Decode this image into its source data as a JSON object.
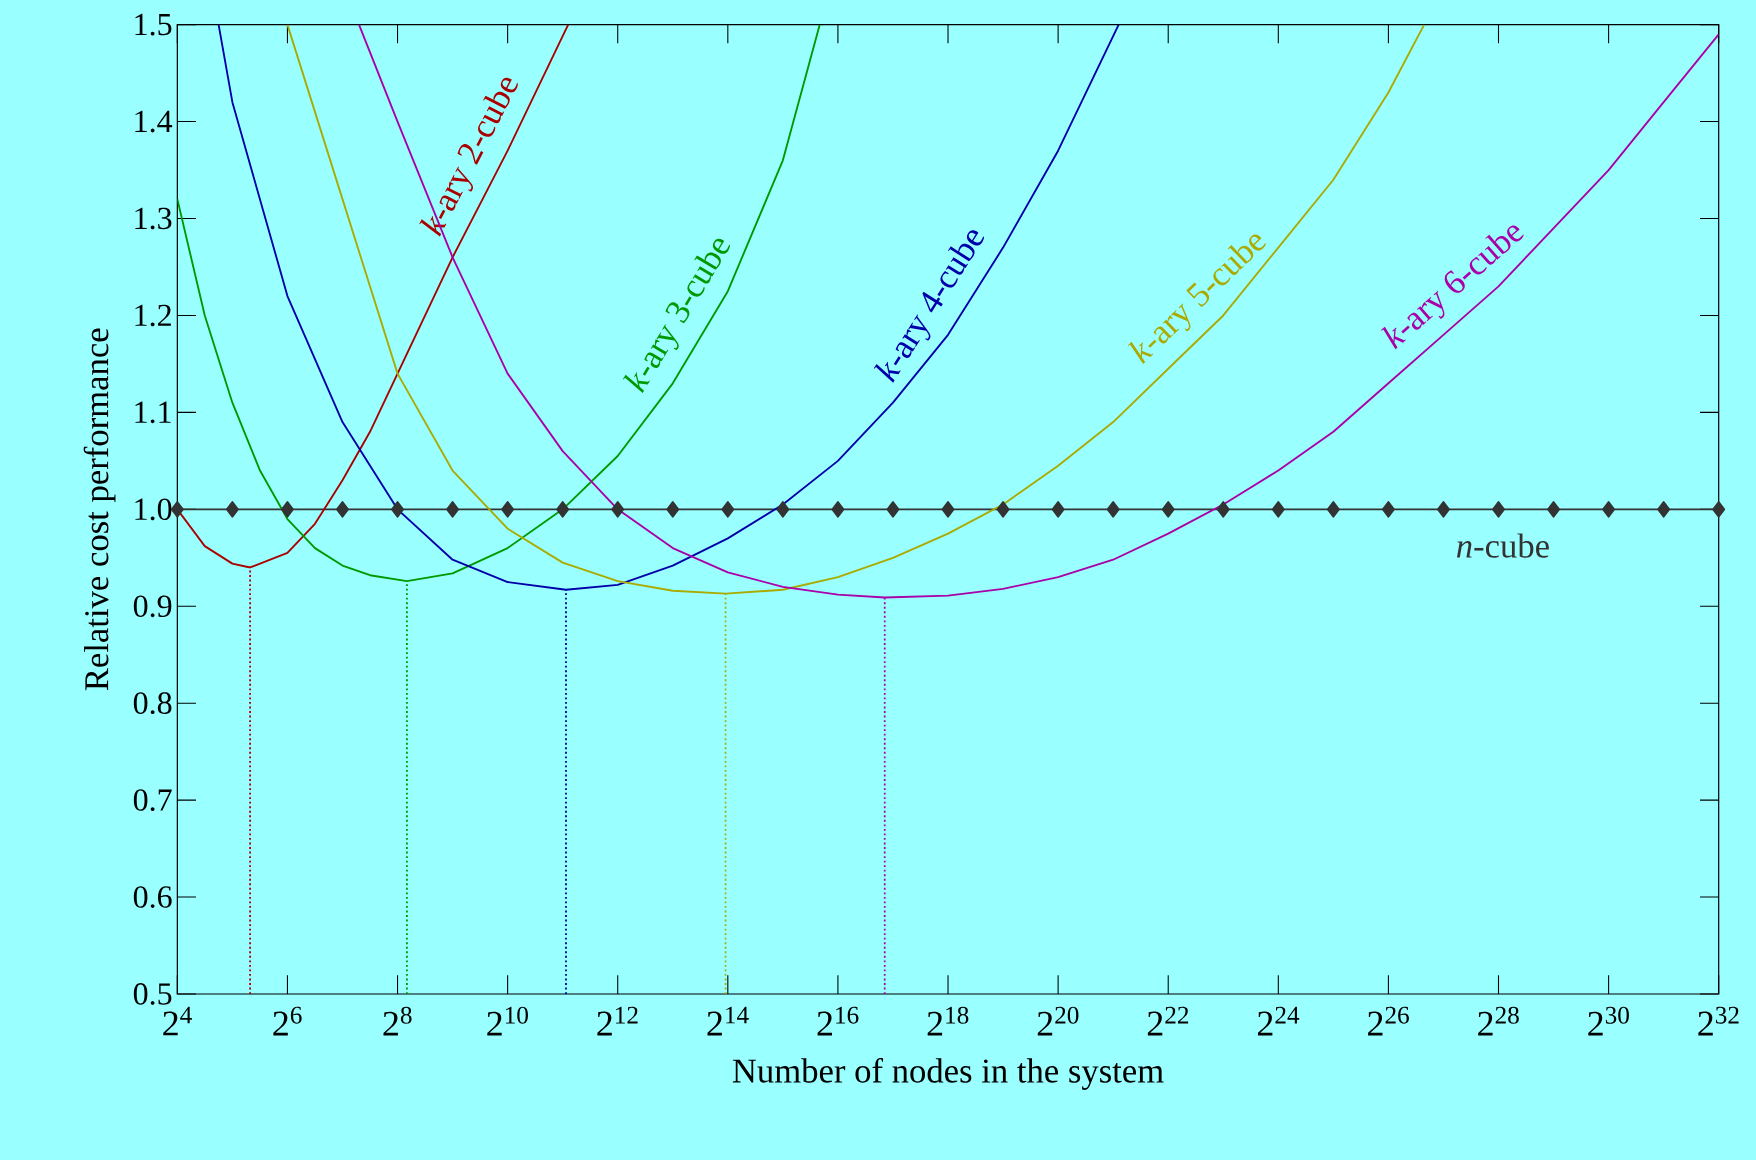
{
  "chart_data": {
    "type": "line",
    "xlabel": "Number of nodes in the system",
    "ylabel": "Relative cost performance",
    "log": "x",
    "xlim": [
      16,
      4294967296
    ],
    "ylim": [
      0.5,
      1.5
    ],
    "xticks": [
      {
        "value": 16,
        "label": "2$^{4}$"
      },
      {
        "value": 64,
        "label": "2$^{6}$"
      },
      {
        "value": 256,
        "label": "2$^{8}$"
      },
      {
        "value": 1024,
        "label": "2$^{10}$"
      },
      {
        "value": 4096,
        "label": "2$^{12}$"
      },
      {
        "value": 16384,
        "label": "2$^{14}$"
      },
      {
        "value": 65536,
        "label": "2$^{16}$"
      },
      {
        "value": 262144,
        "label": "2$^{18}$"
      },
      {
        "value": 1048576,
        "label": "2$^{20}$"
      },
      {
        "value": 4194304,
        "label": "2$^{22}$"
      },
      {
        "value": 16777216,
        "label": "2$^{24}$"
      },
      {
        "value": 67108864,
        "label": "2$^{26}$"
      },
      {
        "value": 268435456,
        "label": "2$^{28}$"
      },
      {
        "value": 1073741824,
        "label": "2$^{30}$"
      },
      {
        "value": 4294967296,
        "label": "2$^{32}$"
      }
    ],
    "yticks": [
      {
        "value": 0.5,
        "label": "0.5"
      },
      {
        "value": 0.6,
        "label": "0.6"
      },
      {
        "value": 0.7,
        "label": "0.7"
      },
      {
        "value": 0.8,
        "label": "0.8"
      },
      {
        "value": 0.9,
        "label": "0.9"
      },
      {
        "value": 1.0,
        "label": "1.0"
      },
      {
        "value": 1.1,
        "label": "1.1"
      },
      {
        "value": 1.2,
        "label": "1.2"
      },
      {
        "value": 1.3,
        "label": "1.3"
      },
      {
        "value": 1.4,
        "label": "1.4"
      },
      {
        "value": 1.5,
        "label": "1.5"
      }
    ],
    "series": [
      {
        "name": "*n*-cube",
        "color": "#333333",
        "marker": "diamond",
        "line_style": "solid",
        "x": [
          16,
          32,
          64,
          128,
          256,
          512,
          1024,
          2048,
          4096,
          8192,
          16384,
          32768,
          65536,
          131072,
          262144,
          524288,
          1048576,
          2097152,
          4194304,
          8388608,
          16777216,
          33554432,
          67108864,
          134217728,
          268435456,
          536870912,
          1073741824,
          2147483648,
          4294967296
        ],
        "values": [
          1.0,
          1.0,
          1.0,
          1.0,
          1.0,
          1.0,
          1.0,
          1.0,
          1.0,
          1.0,
          1.0,
          1.0,
          1.0,
          1.0,
          1.0,
          1.0,
          1.0,
          1.0,
          1.0,
          1.0,
          1.0,
          1.0,
          1.0,
          1.0,
          1.0,
          1.0,
          1.0,
          1.0,
          1.0
        ]
      },
      {
        "name": "*k*-ary 2-cube",
        "color": "#aa0000",
        "line_style": "solid",
        "x": [
          16,
          22.6,
          32,
          40,
          64,
          90.5,
          128,
          181,
          256,
          512,
          1024,
          2195
        ],
        "values": [
          1.0,
          0.962,
          0.944,
          0.94,
          0.955,
          0.985,
          1.03,
          1.08,
          1.14,
          1.26,
          1.37,
          1.5
        ]
      },
      {
        "name": "*k*-ary 3-cube",
        "color": "#009900",
        "line_style": "solid",
        "x": [
          16,
          22.6,
          32,
          45.3,
          64,
          90.5,
          128,
          181,
          288,
          512,
          1024,
          2048,
          4096,
          8192,
          16384,
          32768,
          52100
        ],
        "values": [
          1.32,
          1.2,
          1.11,
          1.04,
          0.99,
          0.96,
          0.942,
          0.932,
          0.926,
          0.934,
          0.96,
          1.0,
          1.055,
          1.13,
          1.225,
          1.36,
          1.5
        ]
      },
      {
        "name": "*k*-ary 4-cube",
        "color": "#0000aa",
        "line_style": "solid",
        "x": [
          26.9,
          32,
          64,
          128,
          256,
          512,
          1024,
          2135,
          4096,
          8192,
          16384,
          32768,
          65536,
          131072,
          262144,
          524288,
          1048576,
          2248000
        ],
        "values": [
          1.5,
          1.42,
          1.22,
          1.09,
          1.0,
          0.948,
          0.925,
          0.917,
          0.922,
          0.942,
          0.97,
          1.005,
          1.05,
          1.11,
          1.18,
          1.27,
          1.37,
          1.5
        ]
      },
      {
        "name": "*k*-ary 5-cube",
        "color": "#aaaa00",
        "line_style": "solid",
        "x": [
          64,
          128,
          256,
          512,
          1024,
          2048,
          4096,
          8192,
          15940,
          32768,
          65536,
          131072,
          262144,
          524288,
          1048576,
          2097152,
          4194304,
          8388608,
          16777216,
          33554432,
          67108864,
          105300000
        ],
        "values": [
          1.5,
          1.32,
          1.14,
          1.04,
          0.98,
          0.945,
          0.926,
          0.916,
          0.913,
          0.917,
          0.93,
          0.95,
          0.975,
          1.005,
          1.045,
          1.09,
          1.145,
          1.2,
          1.27,
          1.34,
          1.43,
          1.5
        ]
      },
      {
        "name": "*k*-ary 6-cube",
        "color": "#aa00aa",
        "line_style": "solid",
        "x": [
          157.6,
          256,
          512,
          1024,
          2048,
          4096,
          8192,
          16384,
          32768,
          65536,
          118100,
          262144,
          524288,
          1048576,
          2097152,
          4194304,
          8388608,
          16777216,
          33554432,
          67108864,
          134217728,
          268435456,
          536870912,
          1073741824,
          2147483648,
          4294967296
        ],
        "values": [
          1.5,
          1.4,
          1.26,
          1.14,
          1.06,
          1.0,
          0.96,
          0.935,
          0.92,
          0.912,
          0.909,
          0.911,
          0.918,
          0.93,
          0.948,
          0.975,
          1.005,
          1.04,
          1.08,
          1.13,
          1.18,
          1.23,
          1.29,
          1.35,
          1.42,
          1.49
        ]
      },
      {
        "color": "#aa0000",
        "line_style": "dotted",
        "x": [
          40,
          40
        ],
        "values": [
          0.5,
          0.94
        ]
      },
      {
        "color": "#009900",
        "line_style": "dotted",
        "x": [
          288,
          288
        ],
        "values": [
          0.5,
          0.926
        ]
      },
      {
        "color": "#0000aa",
        "line_style": "dotted",
        "x": [
          2135,
          2135
        ],
        "values": [
          0.5,
          0.917
        ]
      },
      {
        "color": "#aaaa00",
        "line_style": "dotted",
        "x": [
          15940,
          15940
        ],
        "values": [
          0.5,
          0.913
        ]
      },
      {
        "color": "#aa00aa",
        "line_style": "dotted",
        "x": [
          118100,
          118100
        ],
        "values": [
          0.5,
          0.909
        ]
      }
    ]
  }
}
